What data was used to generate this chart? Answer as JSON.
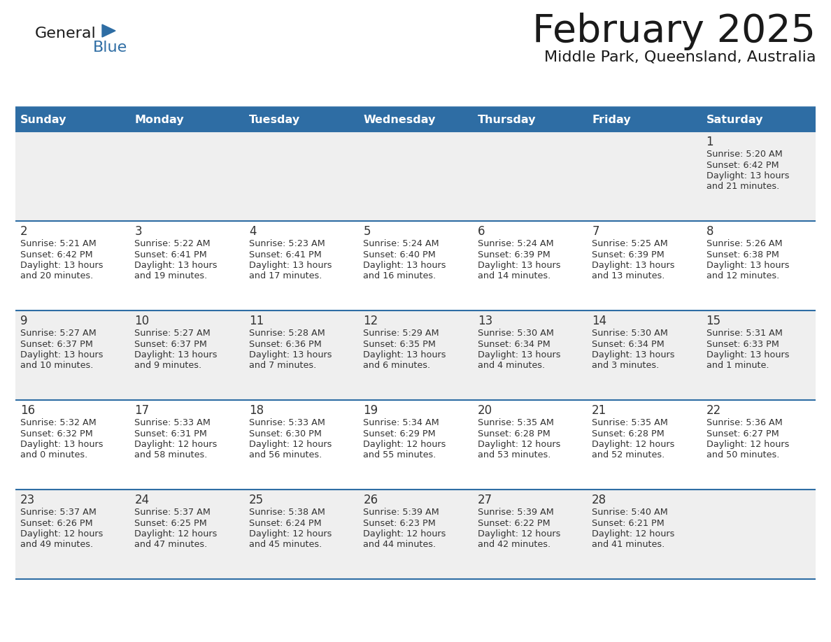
{
  "title": "February 2025",
  "subtitle": "Middle Park, Queensland, Australia",
  "header_bg_color": "#2E6DA4",
  "header_text_color": "#FFFFFF",
  "day_names": [
    "Sunday",
    "Monday",
    "Tuesday",
    "Wednesday",
    "Thursday",
    "Friday",
    "Saturday"
  ],
  "background_color": "#FFFFFF",
  "row_bg_colors": [
    "#EFEFEF",
    "#FFFFFF",
    "#EFEFEF",
    "#FFFFFF",
    "#EFEFEF"
  ],
  "text_color": "#333333",
  "day_num_color": "#333333",
  "separator_color": "#2E6DA4",
  "logo_general_color": "#1A1A1A",
  "logo_blue_color": "#2E6DA4",
  "weeks": [
    {
      "days": [
        {
          "date": null,
          "sunrise": null,
          "sunset": null,
          "daylight": null
        },
        {
          "date": null,
          "sunrise": null,
          "sunset": null,
          "daylight": null
        },
        {
          "date": null,
          "sunrise": null,
          "sunset": null,
          "daylight": null
        },
        {
          "date": null,
          "sunrise": null,
          "sunset": null,
          "daylight": null
        },
        {
          "date": null,
          "sunrise": null,
          "sunset": null,
          "daylight": null
        },
        {
          "date": null,
          "sunrise": null,
          "sunset": null,
          "daylight": null
        },
        {
          "date": 1,
          "sunrise": "5:20 AM",
          "sunset": "6:42 PM",
          "daylight": "13 hours and 21 minutes."
        }
      ]
    },
    {
      "days": [
        {
          "date": 2,
          "sunrise": "5:21 AM",
          "sunset": "6:42 PM",
          "daylight": "13 hours and 20 minutes."
        },
        {
          "date": 3,
          "sunrise": "5:22 AM",
          "sunset": "6:41 PM",
          "daylight": "13 hours and 19 minutes."
        },
        {
          "date": 4,
          "sunrise": "5:23 AM",
          "sunset": "6:41 PM",
          "daylight": "13 hours and 17 minutes."
        },
        {
          "date": 5,
          "sunrise": "5:24 AM",
          "sunset": "6:40 PM",
          "daylight": "13 hours and 16 minutes."
        },
        {
          "date": 6,
          "sunrise": "5:24 AM",
          "sunset": "6:39 PM",
          "daylight": "13 hours and 14 minutes."
        },
        {
          "date": 7,
          "sunrise": "5:25 AM",
          "sunset": "6:39 PM",
          "daylight": "13 hours and 13 minutes."
        },
        {
          "date": 8,
          "sunrise": "5:26 AM",
          "sunset": "6:38 PM",
          "daylight": "13 hours and 12 minutes."
        }
      ]
    },
    {
      "days": [
        {
          "date": 9,
          "sunrise": "5:27 AM",
          "sunset": "6:37 PM",
          "daylight": "13 hours and 10 minutes."
        },
        {
          "date": 10,
          "sunrise": "5:27 AM",
          "sunset": "6:37 PM",
          "daylight": "13 hours and 9 minutes."
        },
        {
          "date": 11,
          "sunrise": "5:28 AM",
          "sunset": "6:36 PM",
          "daylight": "13 hours and 7 minutes."
        },
        {
          "date": 12,
          "sunrise": "5:29 AM",
          "sunset": "6:35 PM",
          "daylight": "13 hours and 6 minutes."
        },
        {
          "date": 13,
          "sunrise": "5:30 AM",
          "sunset": "6:34 PM",
          "daylight": "13 hours and 4 minutes."
        },
        {
          "date": 14,
          "sunrise": "5:30 AM",
          "sunset": "6:34 PM",
          "daylight": "13 hours and 3 minutes."
        },
        {
          "date": 15,
          "sunrise": "5:31 AM",
          "sunset": "6:33 PM",
          "daylight": "13 hours and 1 minute."
        }
      ]
    },
    {
      "days": [
        {
          "date": 16,
          "sunrise": "5:32 AM",
          "sunset": "6:32 PM",
          "daylight": "13 hours and 0 minutes."
        },
        {
          "date": 17,
          "sunrise": "5:33 AM",
          "sunset": "6:31 PM",
          "daylight": "12 hours and 58 minutes."
        },
        {
          "date": 18,
          "sunrise": "5:33 AM",
          "sunset": "6:30 PM",
          "daylight": "12 hours and 56 minutes."
        },
        {
          "date": 19,
          "sunrise": "5:34 AM",
          "sunset": "6:29 PM",
          "daylight": "12 hours and 55 minutes."
        },
        {
          "date": 20,
          "sunrise": "5:35 AM",
          "sunset": "6:28 PM",
          "daylight": "12 hours and 53 minutes."
        },
        {
          "date": 21,
          "sunrise": "5:35 AM",
          "sunset": "6:28 PM",
          "daylight": "12 hours and 52 minutes."
        },
        {
          "date": 22,
          "sunrise": "5:36 AM",
          "sunset": "6:27 PM",
          "daylight": "12 hours and 50 minutes."
        }
      ]
    },
    {
      "days": [
        {
          "date": 23,
          "sunrise": "5:37 AM",
          "sunset": "6:26 PM",
          "daylight": "12 hours and 49 minutes."
        },
        {
          "date": 24,
          "sunrise": "5:37 AM",
          "sunset": "6:25 PM",
          "daylight": "12 hours and 47 minutes."
        },
        {
          "date": 25,
          "sunrise": "5:38 AM",
          "sunset": "6:24 PM",
          "daylight": "12 hours and 45 minutes."
        },
        {
          "date": 26,
          "sunrise": "5:39 AM",
          "sunset": "6:23 PM",
          "daylight": "12 hours and 44 minutes."
        },
        {
          "date": 27,
          "sunrise": "5:39 AM",
          "sunset": "6:22 PM",
          "daylight": "12 hours and 42 minutes."
        },
        {
          "date": 28,
          "sunrise": "5:40 AM",
          "sunset": "6:21 PM",
          "daylight": "12 hours and 41 minutes."
        },
        {
          "date": null,
          "sunrise": null,
          "sunset": null,
          "daylight": null
        }
      ]
    }
  ]
}
